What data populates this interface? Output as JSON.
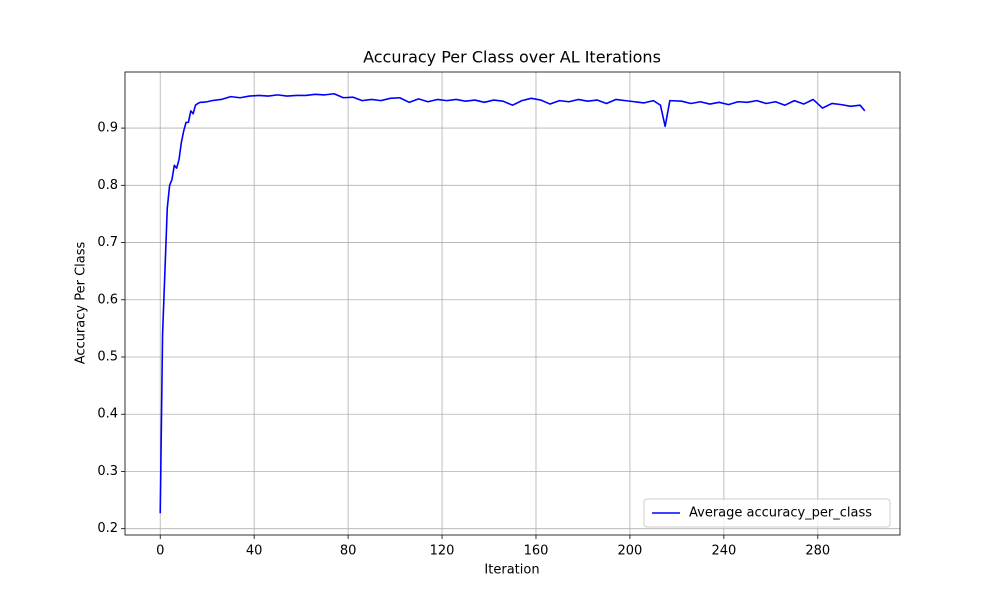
{
  "chart_data": {
    "type": "line",
    "title": "Accuracy Per Class over AL Iterations",
    "x_label": "Iteration",
    "y_label": "Accuracy Per Class",
    "x": [
      0,
      1,
      2,
      3,
      4,
      5,
      6,
      7,
      8,
      9,
      10,
      11,
      12,
      13,
      14,
      15,
      16,
      17,
      18,
      20,
      22,
      26,
      30,
      34,
      38,
      42,
      46,
      50,
      54,
      58,
      62,
      66,
      70,
      74,
      78,
      82,
      86,
      90,
      94,
      98,
      102,
      106,
      110,
      114,
      118,
      122,
      126,
      130,
      134,
      138,
      142,
      146,
      150,
      154,
      158,
      162,
      166,
      170,
      174,
      178,
      182,
      186,
      190,
      194,
      198,
      202,
      206,
      210,
      213,
      215,
      217,
      222,
      226,
      230,
      234,
      238,
      242,
      246,
      250,
      254,
      258,
      262,
      266,
      270,
      274,
      278,
      282,
      286,
      290,
      294,
      298,
      300
    ],
    "series": [
      {
        "name": "Average accuracy_per_class",
        "color": "#0000ff",
        "values": [
          0.227,
          0.54,
          0.65,
          0.76,
          0.8,
          0.81,
          0.835,
          0.83,
          0.845,
          0.875,
          0.895,
          0.91,
          0.91,
          0.93,
          0.925,
          0.94,
          0.943,
          0.945,
          0.945,
          0.946,
          0.948,
          0.95,
          0.955,
          0.953,
          0.956,
          0.957,
          0.956,
          0.958,
          0.956,
          0.957,
          0.957,
          0.959,
          0.958,
          0.96,
          0.953,
          0.954,
          0.948,
          0.95,
          0.948,
          0.952,
          0.953,
          0.945,
          0.951,
          0.946,
          0.95,
          0.948,
          0.95,
          0.947,
          0.949,
          0.945,
          0.949,
          0.947,
          0.94,
          0.948,
          0.952,
          0.949,
          0.942,
          0.948,
          0.946,
          0.95,
          0.947,
          0.949,
          0.943,
          0.95,
          0.948,
          0.946,
          0.944,
          0.948,
          0.94,
          0.903,
          0.948,
          0.947,
          0.943,
          0.946,
          0.942,
          0.945,
          0.941,
          0.946,
          0.945,
          0.948,
          0.943,
          0.946,
          0.94,
          0.948,
          0.942,
          0.95,
          0.935,
          0.943,
          0.941,
          0.938,
          0.94,
          0.93
        ]
      }
    ],
    "xlim": [
      -15,
      315
    ],
    "ylim": [
      0.189,
      0.998
    ],
    "xticks": [
      0,
      40,
      80,
      120,
      160,
      200,
      240,
      280
    ],
    "yticks": [
      0.2,
      0.3,
      0.4,
      0.5,
      0.6,
      0.7,
      0.8,
      0.9
    ],
    "grid": true,
    "legend": "lower right"
  }
}
